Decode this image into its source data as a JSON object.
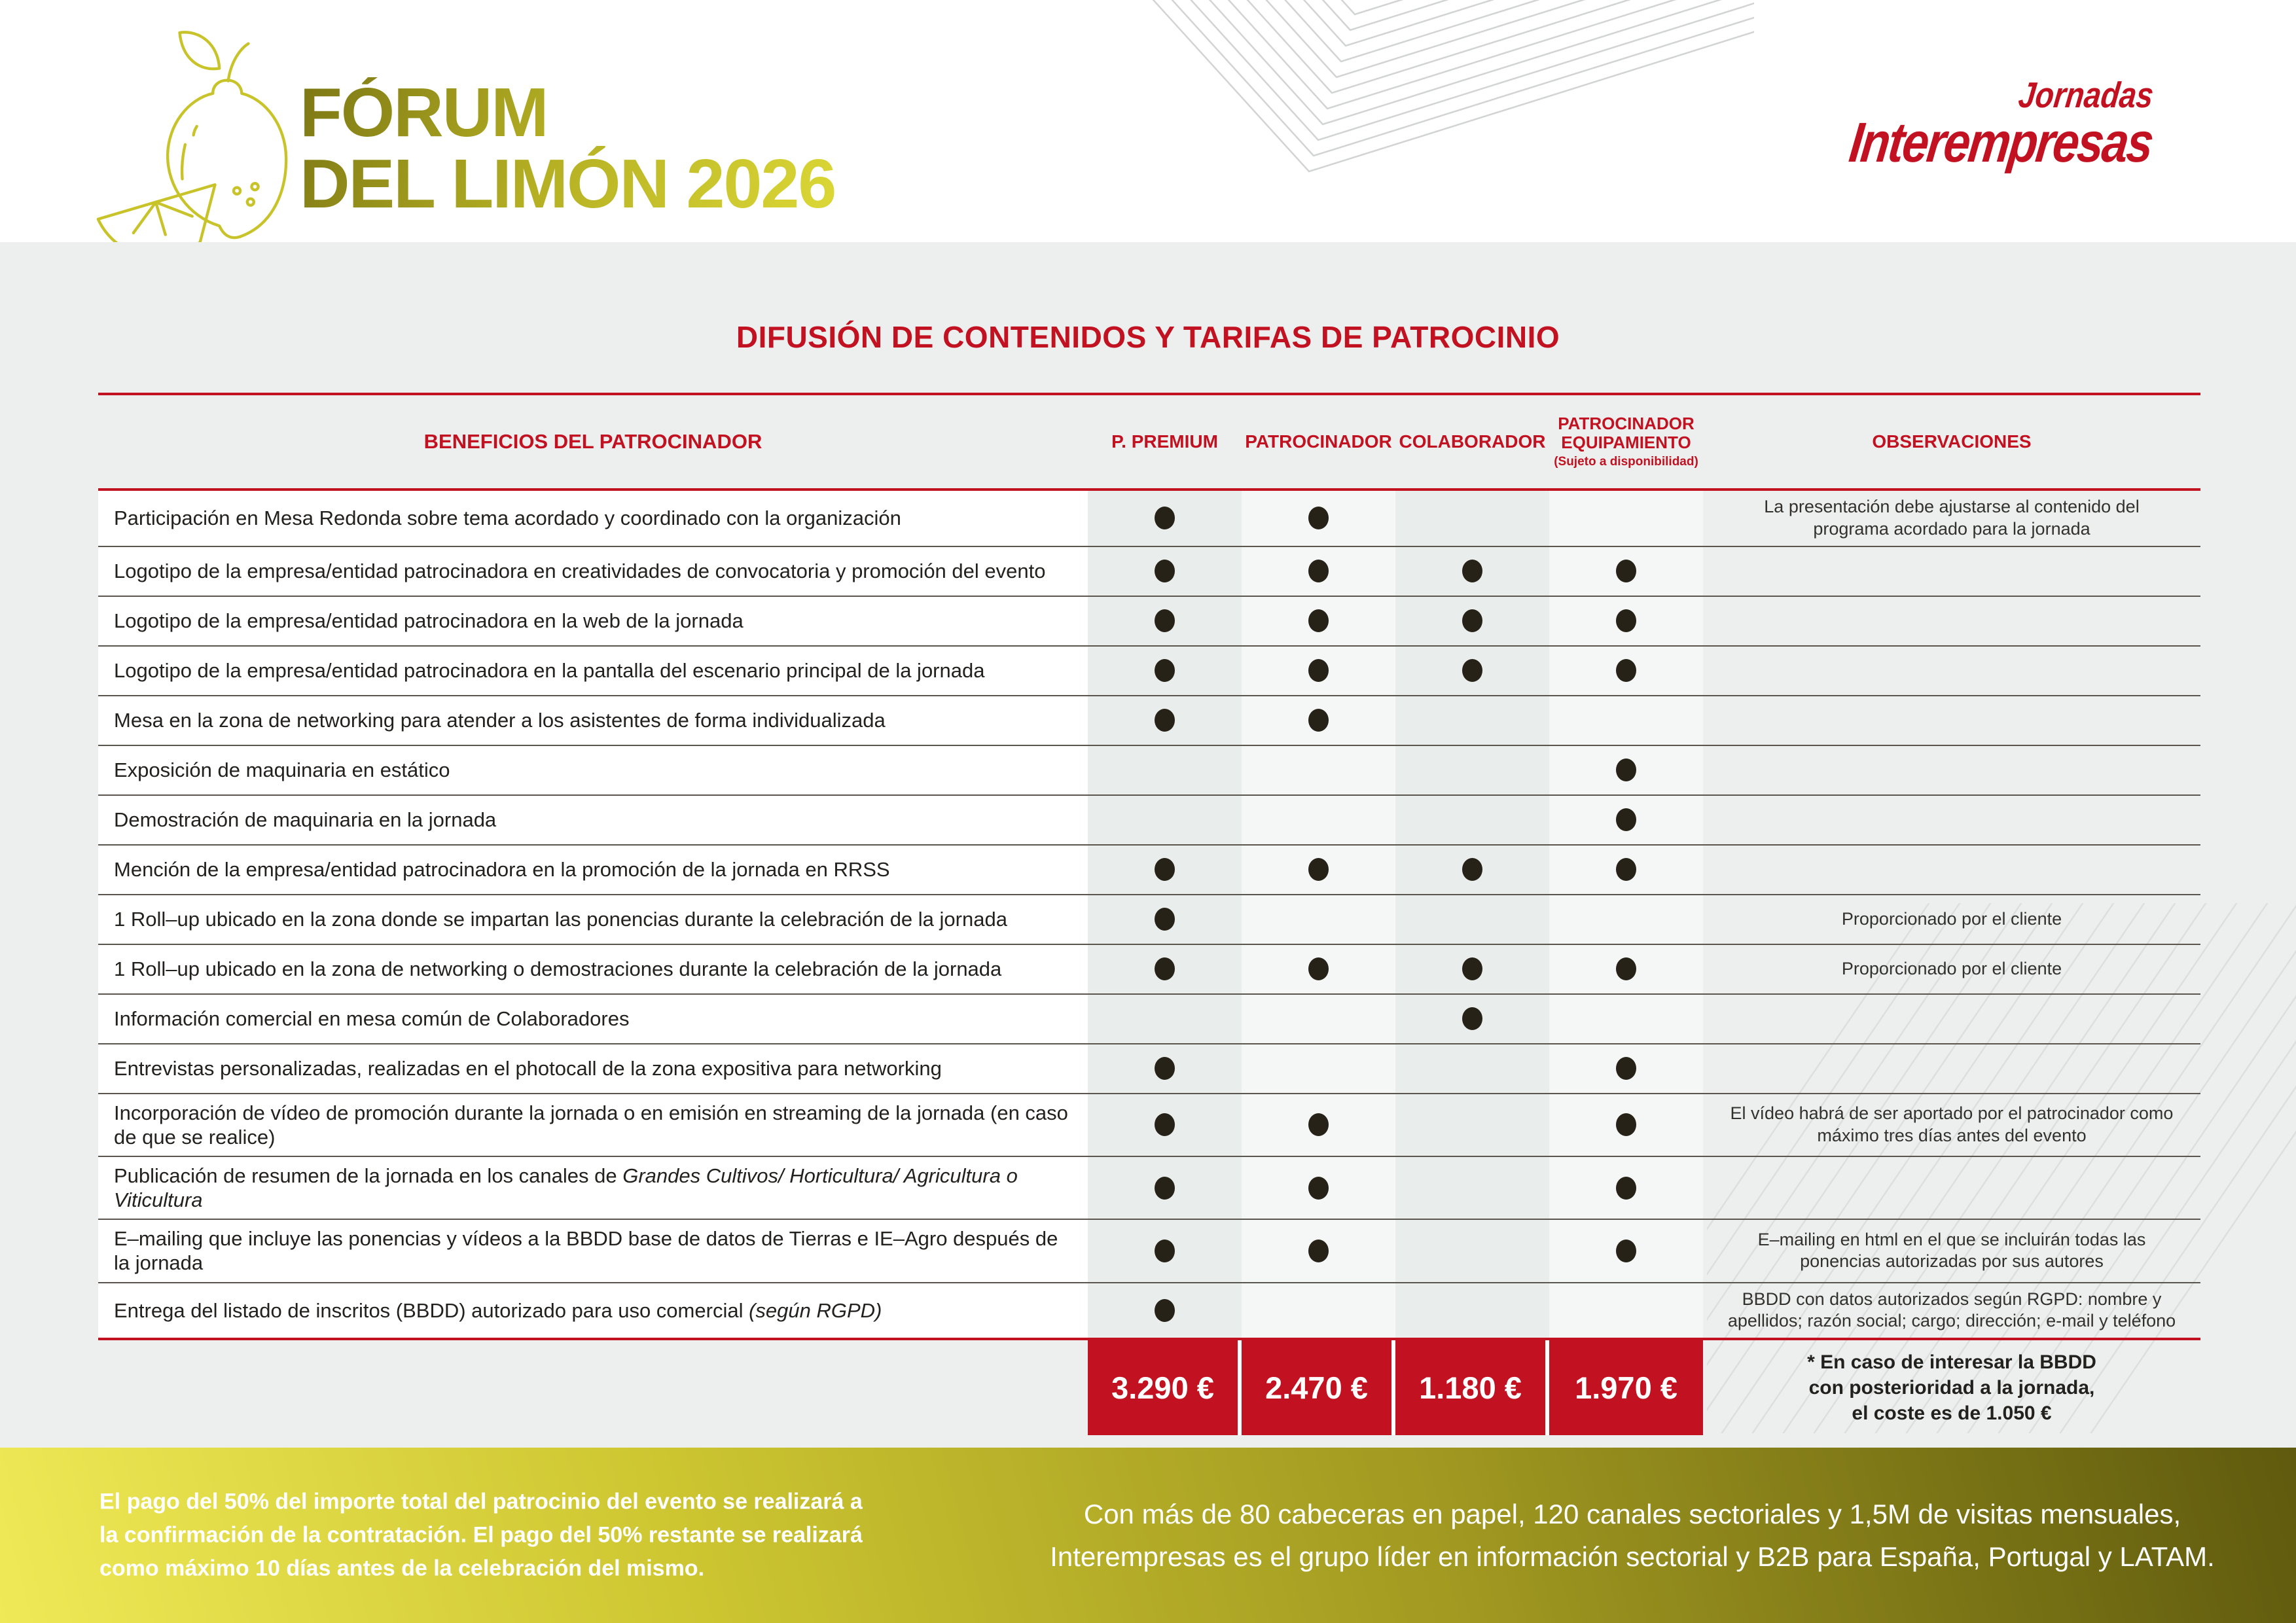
{
  "brand": {
    "event_title_line1": "FÓRUM",
    "event_title_line2": "DEL LIMÓN 2026",
    "logo_line1": "Jornadas",
    "logo_line2": "Interempresas"
  },
  "section": {
    "title": "DIFUSIÓN DE CONTENIDOS Y TARIFAS DE PATROCINIO"
  },
  "table": {
    "headers": {
      "benefits": "BENEFICIOS DEL PATROCINADOR",
      "premium": "P. PREMIUM",
      "patrocinador": "PATROCINADOR",
      "colaborador": "COLABORADOR",
      "equipamiento": "PATROCINADOR EQUIPAMIENTO",
      "equipamiento_note": "(Sujeto a disponibilidad)",
      "observaciones": "OBSERVACIONES"
    },
    "rows": [
      {
        "benefit": "Participación en Mesa Redonda sobre tema acordado y coordinado con la organización",
        "benefit_italic": "",
        "dots": [
          1,
          1,
          0,
          0
        ],
        "observation": "La presentación debe ajustarse al contenido del programa acordado para la jornada"
      },
      {
        "benefit": "Logotipo de la empresa/entidad patrocinadora en creatividades de convocatoria y promoción del evento",
        "benefit_italic": "",
        "dots": [
          1,
          1,
          1,
          1
        ],
        "observation": ""
      },
      {
        "benefit": "Logotipo de la empresa/entidad patrocinadora en la web de la jornada",
        "benefit_italic": "",
        "dots": [
          1,
          1,
          1,
          1
        ],
        "observation": ""
      },
      {
        "benefit": "Logotipo de la empresa/entidad patrocinadora en la pantalla del escenario principal de la jornada",
        "benefit_italic": "",
        "dots": [
          1,
          1,
          1,
          1
        ],
        "observation": ""
      },
      {
        "benefit": "Mesa en la zona de networking para atender a  los asistentes de forma individualizada",
        "benefit_italic": "",
        "dots": [
          1,
          1,
          0,
          0
        ],
        "observation": ""
      },
      {
        "benefit": "Exposición de maquinaria en estático",
        "benefit_italic": "",
        "dots": [
          0,
          0,
          0,
          1
        ],
        "observation": ""
      },
      {
        "benefit": "Demostración de maquinaria en la jornada",
        "benefit_italic": "",
        "dots": [
          0,
          0,
          0,
          1
        ],
        "observation": ""
      },
      {
        "benefit": "Mención de la empresa/entidad patrocinadora en la promoción de la jornada en RRSS",
        "benefit_italic": "",
        "dots": [
          1,
          1,
          1,
          1
        ],
        "observation": ""
      },
      {
        "benefit": "1 Roll–up ubicado en la zona donde se impartan las ponencias durante la celebración de la jornada",
        "benefit_italic": "",
        "dots": [
          1,
          0,
          0,
          0
        ],
        "observation": "Proporcionado por el cliente"
      },
      {
        "benefit": "1 Roll–up ubicado en la zona de networking o demostraciones durante la celebración de la jornada",
        "benefit_italic": "",
        "dots": [
          1,
          1,
          1,
          1
        ],
        "observation": "Proporcionado por el cliente"
      },
      {
        "benefit": "Información comercial en mesa común de Colaboradores",
        "benefit_italic": "",
        "dots": [
          0,
          0,
          1,
          0
        ],
        "observation": ""
      },
      {
        "benefit": "Entrevistas personalizadas, realizadas en el photocall de la zona expositiva para networking",
        "benefit_italic": "",
        "dots": [
          1,
          0,
          0,
          1
        ],
        "observation": ""
      },
      {
        "benefit": "Incorporación de vídeo de promoción durante la jornada o en emisión en streaming de la jornada (en caso de que se realice)",
        "benefit_italic": "",
        "dots": [
          1,
          1,
          0,
          1
        ],
        "observation": "El vídeo habrá de ser aportado por el patrocinador como máximo tres días antes del evento"
      },
      {
        "benefit": "Publicación de resumen de la jornada en los canales de ",
        "benefit_italic": "Grandes Cultivos/ Horticultura/ Agricultura o Viticultura",
        "dots": [
          1,
          1,
          0,
          1
        ],
        "observation": ""
      },
      {
        "benefit": "E–mailing que incluye las ponencias y vídeos a la BBDD base de datos de Tierras e IE–Agro después de la jornada",
        "benefit_italic": "",
        "dots": [
          1,
          1,
          0,
          1
        ],
        "observation": "E–mailing en html en el que se incluirán todas las ponencias autorizadas por sus autores"
      },
      {
        "benefit": "Entrega del listado de inscritos (BBDD) autorizado para uso comercial ",
        "benefit_italic": "(según RGPD)",
        "dots": [
          1,
          0,
          0,
          0
        ],
        "observation": "BBDD con datos autorizados según RGPD: nombre y apellidos; razón social; cargo; dirección; e-mail y teléfono"
      }
    ],
    "prices": [
      "3.290 €",
      "2.470 €",
      "1.180 €",
      "1.970 €"
    ],
    "price_note": "* En caso de interesar la BBDD\ncon posterioridad a la jornada,\nel coste es de 1.050 €"
  },
  "footer": {
    "left_text": "El pago del 50% del importe total del patrocinio del evento se realizará a\nla confirmación de la contratación. El pago del 50% restante se realizará\ncomo máximo 10 días antes de la celebración del mismo.",
    "right_text": "Con más de 80 cabeceras en papel, 120 canales sectoriales y 1,5M de visitas mensuales,\nInterempresas es el grupo líder en información sectorial y B2B para España, Portugal y LATAM."
  },
  "colors": {
    "accent_red": "#C21120",
    "title_gradient_dark": "#7C7714",
    "title_gradient_light": "#DCD836",
    "footer_gradient_start": "#EFE957",
    "footer_gradient_end": "#5F5A0E",
    "dot": "#272218",
    "page_background": "#ECEFEE"
  },
  "icons": {
    "lemon": "lemon-line-icon",
    "chevrons": "decorative-chevron-pattern",
    "diagonals": "decorative-diagonal-lines"
  }
}
